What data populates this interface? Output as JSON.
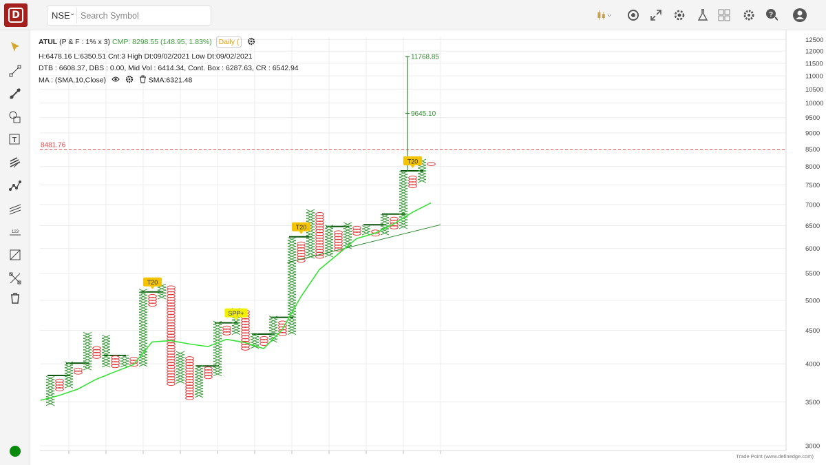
{
  "header": {
    "exchange": "NSE",
    "search_placeholder": "Search Symbol"
  },
  "toolbar_icons": [
    "candlestick-chart-icon",
    "compare-icon",
    "expand-icon",
    "scanner-icon",
    "lab-flask-icon",
    "layout-grid-icon",
    "settings-gear-icon",
    "help-chat-icon",
    "user-account-icon"
  ],
  "sidebar_tools": [
    "cursor-arrow-icon",
    "line-segment-tool-icon",
    "trend-line-tool-icon",
    "shape-tool-icon",
    "text-tool-icon",
    "fibonacci-tool-icon",
    "pattern-tool-icon",
    "channel-tool-icon",
    "measure-tool-icon",
    "projection-tool-icon",
    "magnet-tool-icon",
    "delete-drawings-icon"
  ],
  "info": {
    "symbol": "ATUL",
    "params": "(P & F : 1% x 3)",
    "cmp": "CMP: 8298.55 (148.95, 1.83%)",
    "interval": "Daily (",
    "line2": "H:6478.16 L:6350.51 Cnt:3 High Dt:09/02/2021 Low Dt:09/02/2021",
    "line3": "DTB : 6608.37, DBS : 0.00, Mid Vol : 6414.34, Cont. Box : 6287.63, CR : 6542.94",
    "ma_label": "MA : (SMA,10,Close)",
    "sma_value": "SMA:6321.48"
  },
  "credit": "Trade Point (www.definedge.com)",
  "colors": {
    "x": "#3d9a3d",
    "o": "#e03b3b",
    "sma": "#35e235",
    "level_line": "#e84a4a",
    "bar": "#0c560c",
    "target": "#2e8b2e",
    "tag_yellow": "#f5c400",
    "tag_spp": "#f0f000"
  },
  "chart_data": {
    "type": "point-and-figure",
    "scale": "log",
    "y_ticks": [
      3000,
      3500,
      4000,
      4500,
      5000,
      5500,
      6000,
      6500,
      7000,
      7500,
      8000,
      8500,
      9000,
      9500,
      10000,
      10500,
      11000,
      11500,
      12000,
      12500
    ],
    "ylim": [
      3000,
      12500
    ],
    "column_step": 13.5,
    "columns": [
      {
        "type": "X",
        "low": 3460,
        "high": 3840
      },
      {
        "type": "O",
        "low": 3640,
        "high": 3790
      },
      {
        "type": "X",
        "low": 3680,
        "high": 4010
      },
      {
        "type": "O",
        "low": 3860,
        "high": 3950
      },
      {
        "type": "X",
        "low": 3920,
        "high": 4440
      },
      {
        "type": "O",
        "low": 4080,
        "high": 4240
      },
      {
        "type": "X",
        "low": 3960,
        "high": 4440
      },
      {
        "type": "O",
        "low": 3950,
        "high": 4110
      },
      {
        "type": "X",
        "low": 3960,
        "high": 4120
      },
      {
        "type": "O",
        "low": 3970,
        "high": 4110
      },
      {
        "type": "X",
        "low": 3970,
        "high": 5170
      },
      {
        "type": "O",
        "low": 4900,
        "high": 5100
      },
      {
        "type": "X",
        "low": 5030,
        "high": 5280
      },
      {
        "type": "O",
        "low": 3710,
        "high": 5230
      },
      {
        "type": "X",
        "low": 3740,
        "high": 4170
      },
      {
        "type": "O",
        "low": 3530,
        "high": 4090
      },
      {
        "type": "X",
        "low": 3560,
        "high": 3970
      },
      {
        "type": "O",
        "low": 3800,
        "high": 3950
      },
      {
        "type": "X",
        "low": 3840,
        "high": 4620
      },
      {
        "type": "O",
        "low": 4430,
        "high": 4550
      },
      {
        "type": "X",
        "low": 4440,
        "high": 4870
      },
      {
        "type": "O",
        "low": 4200,
        "high": 4830
      },
      {
        "type": "X",
        "low": 4230,
        "high": 4450
      },
      {
        "type": "O",
        "low": 4270,
        "high": 4420
      },
      {
        "type": "X",
        "low": 4320,
        "high": 4710
      },
      {
        "type": "O",
        "low": 4420,
        "high": 4660
      },
      {
        "type": "X",
        "low": 4440,
        "high": 6250
      },
      {
        "type": "O",
        "low": 5720,
        "high": 6120
      },
      {
        "type": "X",
        "low": 5800,
        "high": 6900
      },
      {
        "type": "O",
        "low": 5800,
        "high": 6800
      },
      {
        "type": "X",
        "low": 5830,
        "high": 6480
      },
      {
        "type": "O",
        "low": 5950,
        "high": 6400
      },
      {
        "type": "X",
        "low": 6000,
        "high": 6530
      },
      {
        "type": "O",
        "low": 6290,
        "high": 6480
      },
      {
        "type": "X",
        "low": 6300,
        "high": 6520
      },
      {
        "type": "O",
        "low": 6270,
        "high": 6410
      },
      {
        "type": "X",
        "low": 6300,
        "high": 6770
      },
      {
        "type": "O",
        "low": 6430,
        "high": 6690
      },
      {
        "type": "X",
        "low": 6440,
        "high": 7880
      },
      {
        "type": "O",
        "low": 7430,
        "high": 7730
      },
      {
        "type": "X",
        "low": 7570,
        "high": 8220
      },
      {
        "type": "O",
        "low": 8030,
        "high": 8150
      }
    ],
    "breakout_bars": [
      {
        "start": 0,
        "end": 2,
        "value": 3840
      },
      {
        "start": 2,
        "end": 4,
        "value": 4010
      },
      {
        "start": 6,
        "end": 8,
        "value": 4120
      },
      {
        "start": 10,
        "end": 12,
        "value": 5150
      },
      {
        "start": 16,
        "end": 18,
        "value": 3970
      },
      {
        "start": 18,
        "end": 20,
        "value": 4620
      },
      {
        "start": 22,
        "end": 24,
        "value": 4440
      },
      {
        "start": 24,
        "end": 26,
        "value": 4710
      },
      {
        "start": 26,
        "end": 28,
        "value": 6250
      },
      {
        "start": 30,
        "end": 32,
        "value": 6480
      },
      {
        "start": 34,
        "end": 36,
        "value": 6520
      },
      {
        "start": 36,
        "end": 38,
        "value": 6770
      },
      {
        "start": 38,
        "end": 40,
        "value": 7880
      }
    ],
    "sma": [
      {
        "col": 0,
        "v": 3520
      },
      {
        "col": 2,
        "v": 3580
      },
      {
        "col": 4,
        "v": 3660
      },
      {
        "col": 6,
        "v": 3790
      },
      {
        "col": 8,
        "v": 3890
      },
      {
        "col": 10,
        "v": 3990
      },
      {
        "col": 12,
        "v": 4320
      },
      {
        "col": 14,
        "v": 4340
      },
      {
        "col": 16,
        "v": 4290
      },
      {
        "col": 18,
        "v": 4250
      },
      {
        "col": 20,
        "v": 4360
      },
      {
        "col": 22,
        "v": 4310
      },
      {
        "col": 24,
        "v": 4220
      },
      {
        "col": 26,
        "v": 4510
      },
      {
        "col": 28,
        "v": 5060
      },
      {
        "col": 30,
        "v": 5570
      },
      {
        "col": 32,
        "v": 5880
      },
      {
        "col": 34,
        "v": 6210
      },
      {
        "col": 36,
        "v": 6330
      },
      {
        "col": 38,
        "v": 6540
      },
      {
        "col": 40,
        "v": 6810
      },
      {
        "col": 42,
        "v": 7040
      }
    ],
    "trendlines": [
      {
        "from_col": 25.5,
        "from_v": 5710,
        "to_col": 42,
        "to_v": 6520
      }
    ],
    "target_line": {
      "col": 38,
      "from": 7880,
      "to": 11768.85,
      "labels": [
        {
          "value": 11768.85,
          "text": "11768.85"
        },
        {
          "value": 9645.1,
          "text": "9645.10"
        }
      ]
    },
    "level_line": {
      "value": 8481.76,
      "label": "8481.76"
    },
    "tags": [
      {
        "col": 11,
        "value": 5150,
        "text": "T20",
        "kind": "yellow"
      },
      {
        "col": 20,
        "value": 4620,
        "text": "SPP+",
        "kind": "spp"
      },
      {
        "col": 27,
        "value": 6250,
        "text": "T20",
        "kind": "yellow"
      },
      {
        "col": 39,
        "value": 7880,
        "text": "T20",
        "kind": "yellow"
      }
    ]
  }
}
